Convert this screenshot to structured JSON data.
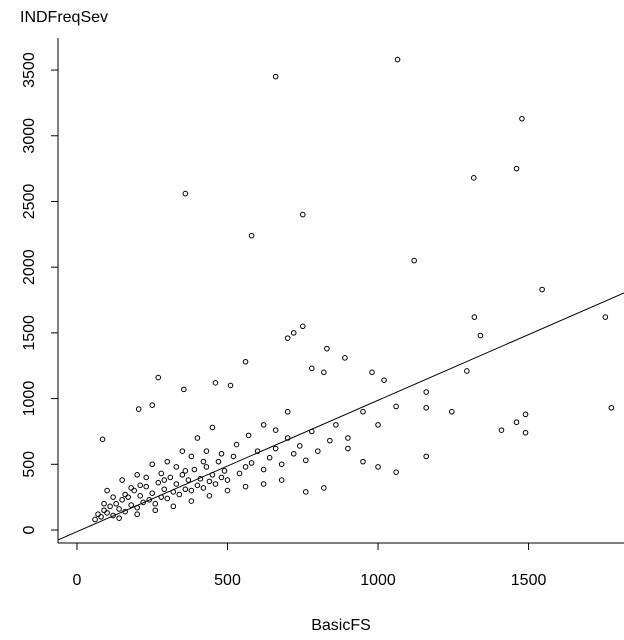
{
  "chart_data": {
    "type": "scatter",
    "y_label": "INDFreqSev",
    "x_label": "BasicFS",
    "xlim": [
      -63,
      1817
    ],
    "ylim": [
      -99,
      3744
    ],
    "xticks": [
      0,
      500,
      1000,
      1500
    ],
    "yticks": [
      0,
      500,
      1000,
      1500,
      2000,
      2500,
      3000,
      3500
    ],
    "series": [
      {
        "name": "points",
        "color": "#000000",
        "x": [
          660,
          1065,
          1478,
          360,
          1318,
          1460,
          580,
          750,
          1120,
          1545,
          1320,
          1755,
          1775,
          1340,
          720,
          750,
          700,
          830,
          890,
          560,
          980,
          1295,
          1020,
          820,
          780,
          270,
          355,
          460,
          510,
          1060,
          1160,
          1410,
          1460,
          1490,
          1490,
          1160,
          1060,
          1160,
          1245,
          900,
          820,
          760,
          1000,
          950,
          85,
          205,
          250,
          60,
          70,
          80,
          90,
          100,
          110,
          120,
          130,
          140,
          150,
          160,
          170,
          180,
          190,
          200,
          210,
          220,
          230,
          240,
          250,
          260,
          270,
          280,
          290,
          300,
          310,
          320,
          330,
          340,
          350,
          360,
          370,
          380,
          390,
          400,
          410,
          420,
          430,
          440,
          450,
          460,
          470,
          480,
          490,
          500,
          520,
          540,
          560,
          580,
          600,
          620,
          640,
          660,
          680,
          700,
          720,
          740,
          760,
          780,
          800,
          840,
          860,
          900,
          950,
          1000,
          150,
          200,
          250,
          300,
          350,
          400,
          450,
          180,
          230,
          280,
          330,
          380,
          430,
          120,
          100,
          140,
          200,
          260,
          320,
          380,
          440,
          500,
          560,
          620,
          680,
          90,
          160,
          210,
          290,
          360,
          420,
          480,
          530,
          570,
          620,
          660,
          700
        ],
        "y": [
          3450,
          3580,
          3130,
          2560,
          2680,
          2750,
          2240,
          2400,
          2050,
          1830,
          1620,
          1620,
          930,
          1480,
          1500,
          1550,
          1460,
          1380,
          1310,
          1280,
          1200,
          1210,
          1140,
          1200,
          1230,
          1160,
          1070,
          1120,
          1100,
          940,
          1050,
          760,
          820,
          880,
          740,
          560,
          440,
          930,
          900,
          620,
          320,
          290,
          480,
          520,
          690,
          920,
          950,
          80,
          120,
          100,
          150,
          130,
          180,
          110,
          200,
          160,
          230,
          140,
          250,
          190,
          300,
          170,
          260,
          210,
          330,
          230,
          280,
          200,
          360,
          250,
          310,
          240,
          400,
          290,
          350,
          270,
          420,
          310,
          380,
          300,
          460,
          340,
          390,
          320,
          480,
          370,
          420,
          350,
          520,
          400,
          450,
          380,
          560,
          430,
          480,
          510,
          600,
          460,
          550,
          620,
          500,
          700,
          580,
          640,
          530,
          750,
          600,
          680,
          800,
          700,
          900,
          800,
          380,
          420,
          500,
          520,
          600,
          700,
          780,
          320,
          400,
          430,
          480,
          560,
          600,
          250,
          300,
          90,
          120,
          150,
          180,
          220,
          260,
          300,
          330,
          350,
          380,
          200,
          270,
          340,
          380,
          450,
          520,
          580,
          650,
          720,
          800,
          760,
          900
        ]
      }
    ],
    "fit_line": {
      "x": [
        -63,
        1817
      ],
      "y": [
        -76,
        1804
      ]
    }
  }
}
